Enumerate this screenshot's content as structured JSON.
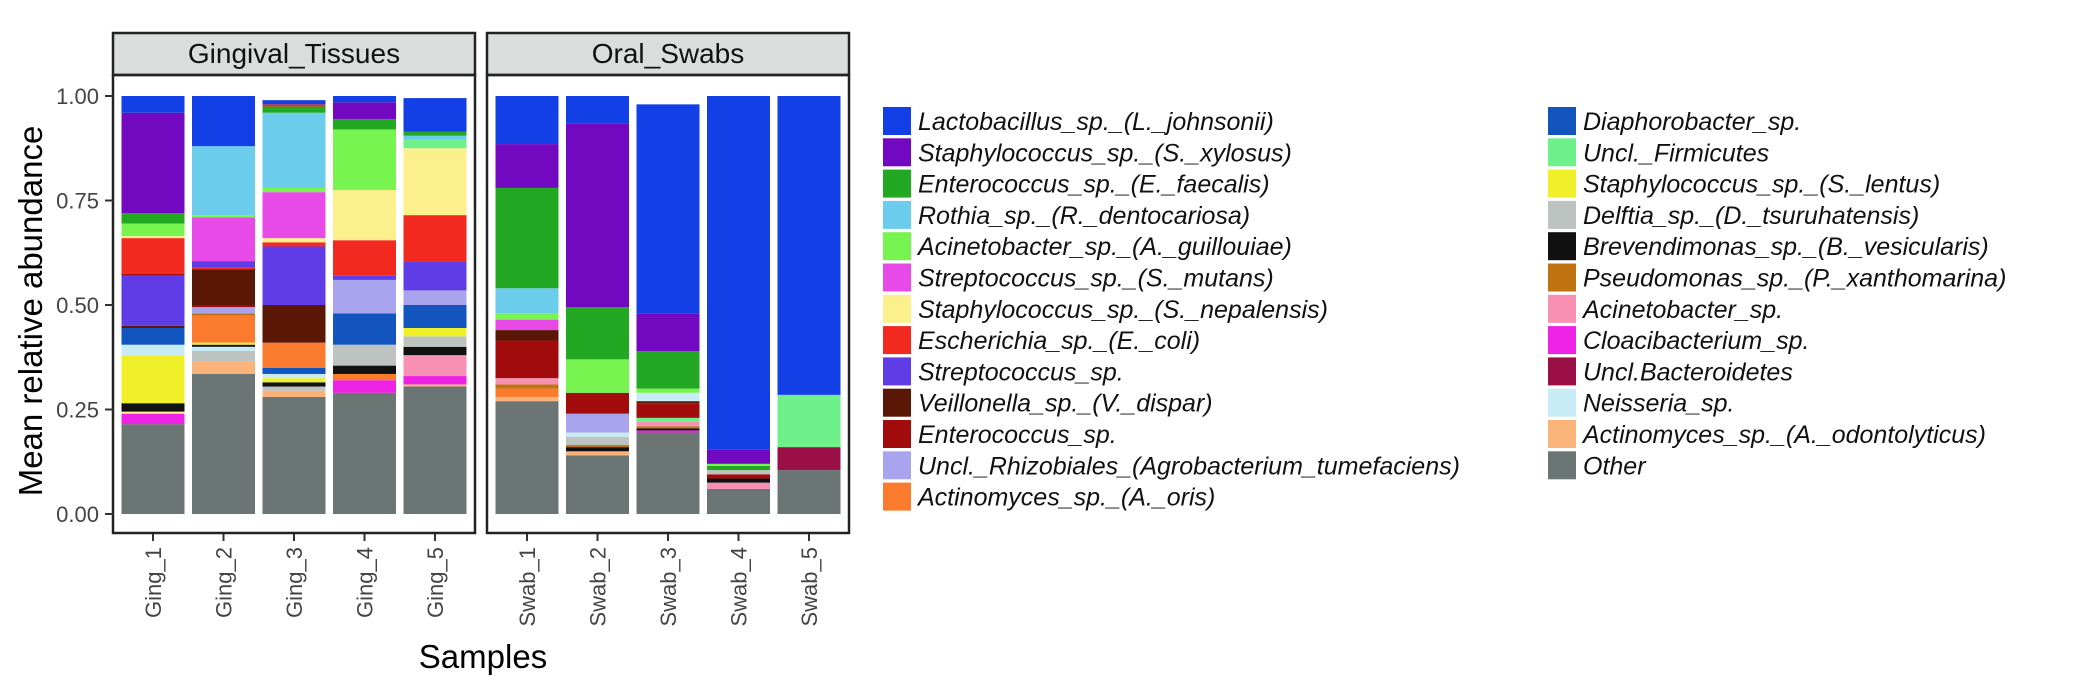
{
  "chart_data": {
    "type": "bar",
    "stacked": true,
    "ylabel": "Mean relative abundance",
    "xlabel": "Samples",
    "ylim": [
      0,
      1
    ],
    "yticks": [
      "0.00",
      "0.25",
      "0.50",
      "0.75",
      "1.00"
    ],
    "grid": false,
    "legend_position": "right",
    "legend_title": "",
    "taxa": [
      {
        "name": "Lactobacillus_sp._(L._johnsonii)",
        "color": "#1340E6"
      },
      {
        "name": "Staphylococcus_sp._(S._xylosus)",
        "color": "#7209C0"
      },
      {
        "name": "Enterococcus_sp._(E._faecalis)",
        "color": "#22A822"
      },
      {
        "name": "Rothia_sp._(R._dentocariosa)",
        "color": "#6CCCEC"
      },
      {
        "name": "Acinetobacter_sp._(A._guillouiae)",
        "color": "#78F450"
      },
      {
        "name": "Streptococcus_sp._(S._mutans)",
        "color": "#E84AE8"
      },
      {
        "name": "Staphylococcus_sp._(S._nepalensis)",
        "color": "#FBF08C"
      },
      {
        "name": "Escherichia_sp._(E._coli)",
        "color": "#F2291E"
      },
      {
        "name": "Streptococcus_sp.",
        "color": "#5F3CE6"
      },
      {
        "name": "Veillonella_sp._(V._dispar)",
        "color": "#5A1706"
      },
      {
        "name": "Enterococcus_sp.",
        "color": "#A30C0C"
      },
      {
        "name": "Uncl._Rhizobiales_(Agrobacterium_tumefaciens)",
        "color": "#A8A4EE"
      },
      {
        "name": "Actinomyces_sp._(A._oris)",
        "color": "#FA7B2E"
      },
      {
        "name": "Diaphorobacter_sp.",
        "color": "#1255BE"
      },
      {
        "name": "Uncl._Firmicutes",
        "color": "#6EF08A"
      },
      {
        "name": "Staphylococcus_sp._(S._lentus)",
        "color": "#F0F02A"
      },
      {
        "name": "Delftia_sp._(D._tsuruhatensis)",
        "color": "#BDC3C0"
      },
      {
        "name": "Brevendimonas_sp._(B._vesicularis)",
        "color": "#111111"
      },
      {
        "name": "Pseudomonas_sp._(P._xanthomarina)",
        "color": "#C07310"
      },
      {
        "name": "Acinetobacter_sp.",
        "color": "#F890B4"
      },
      {
        "name": "Cloacibacterium_sp.",
        "color": "#EE22E4"
      },
      {
        "name": "Uncl.Bacteroidetes",
        "color": "#9A1046"
      },
      {
        "name": "Neisseria_sp.",
        "color": "#C8ECF6"
      },
      {
        "name": "Actinomyces_sp._(A._odontolyticus)",
        "color": "#FAB47A"
      },
      {
        "name": "Other",
        "color": "#6B7574"
      }
    ],
    "facets": [
      {
        "title": "Gingival_Tissues",
        "samples": [
          {
            "name": "Ging_1",
            "stack": [
              [
                "Other",
                0.215
              ],
              [
                "Cloacibacterium_sp.",
                0.025
              ],
              [
                "Staphylococcus_sp._(S._nepalensis)",
                0.005
              ],
              [
                "Brevendimonas_sp._(B._vesicularis)",
                0.02
              ],
              [
                "Staphylococcus_sp._(S._lentus)",
                0.115
              ],
              [
                "Neisseria_sp.",
                0.025
              ],
              [
                "Diaphorobacter_sp.",
                0.04
              ],
              [
                "Veillonella_sp._(V._dispar)",
                0.005
              ],
              [
                "Streptococcus_sp.",
                0.12
              ],
              [
                "Enterococcus_sp.",
                0.005
              ],
              [
                "Escherichia_sp._(E._coli)",
                0.085
              ],
              [
                "Staphylococcus_sp._(S._nepalensis)",
                0.005
              ],
              [
                "Acinetobacter_sp._(A._guillouiae)",
                0.03
              ],
              [
                "Enterococcus_sp._(E._faecalis)",
                0.025
              ],
              [
                "Staphylococcus_sp._(S._xylosus)",
                0.24
              ],
              [
                "Lactobacillus_sp._(L._johnsonii)",
                0.04
              ]
            ]
          },
          {
            "name": "Ging_2",
            "stack": [
              [
                "Other",
                0.335
              ],
              [
                "Actinomyces_sp._(A._odontolyticus)",
                0.03
              ],
              [
                "Delftia_sp._(D._tsuruhatensis)",
                0.025
              ],
              [
                "Neisseria_sp.",
                0.01
              ],
              [
                "Brevendimonas_sp._(B._vesicularis)",
                0.005
              ],
              [
                "Staphylococcus_sp._(S._lentus)",
                0.005
              ],
              [
                "Actinomyces_sp._(A._oris)",
                0.065
              ],
              [
                "Pseudomonas_sp._(P._xanthomarina)",
                0.005
              ],
              [
                "Uncl._Rhizobiales_(Agrobacterium_tumefaciens)",
                0.015
              ],
              [
                "Enterococcus_sp.",
                0.005
              ],
              [
                "Veillonella_sp._(V._dispar)",
                0.085
              ],
              [
                "Escherichia_sp._(E._coli)",
                0.005
              ],
              [
                "Streptococcus_sp.",
                0.015
              ],
              [
                "Streptococcus_sp._(S._mutans)",
                0.105
              ],
              [
                "Acinetobacter_sp._(A._guillouiae)",
                0.005
              ],
              [
                "Rothia_sp._(R._dentocariosa)",
                0.165
              ],
              [
                "Lactobacillus_sp._(L._johnsonii)",
                0.12
              ]
            ]
          },
          {
            "name": "Ging_3",
            "stack": [
              [
                "Other",
                0.28
              ],
              [
                "Actinomyces_sp._(A._odontolyticus)",
                0.015
              ],
              [
                "Delftia_sp._(D._tsuruhatensis)",
                0.01
              ],
              [
                "Brevendimonas_sp._(B._vesicularis)",
                0.01
              ],
              [
                "Staphylococcus_sp._(S._lentus)",
                0.01
              ],
              [
                "Neisseria_sp.",
                0.01
              ],
              [
                "Diaphorobacter_sp.",
                0.015
              ],
              [
                "Actinomyces_sp._(A._oris)",
                0.06
              ],
              [
                "Veillonella_sp._(V._dispar)",
                0.09
              ],
              [
                "Streptococcus_sp.",
                0.14
              ],
              [
                "Escherichia_sp._(E._coli)",
                0.01
              ],
              [
                "Staphylococcus_sp._(S._nepalensis)",
                0.01
              ],
              [
                "Streptococcus_sp._(S._mutans)",
                0.11
              ],
              [
                "Acinetobacter_sp._(A._guillouiae)",
                0.01
              ],
              [
                "Rothia_sp._(R._dentocariosa)",
                0.18
              ],
              [
                "Enterococcus_sp._(E._faecalis)",
                0.015
              ],
              [
                "Escherichia_sp._(E._coli)",
                0.005
              ],
              [
                "Lactobacillus_sp._(L._johnsonii)",
                0.01
              ]
            ]
          },
          {
            "name": "Ging_4",
            "stack": [
              [
                "Other",
                0.29
              ],
              [
                "Cloacibacterium_sp.",
                0.03
              ],
              [
                "Actinomyces_sp._(A._oris)",
                0.015
              ],
              [
                "Brevendimonas_sp._(B._vesicularis)",
                0.02
              ],
              [
                "Delftia_sp._(D._tsuruhatensis)",
                0.05
              ],
              [
                "Diaphorobacter_sp.",
                0.075
              ],
              [
                "Uncl._Rhizobiales_(Agrobacterium_tumefaciens)",
                0.08
              ],
              [
                "Streptococcus_sp.",
                0.01
              ],
              [
                "Escherichia_sp._(E._coli)",
                0.085
              ],
              [
                "Staphylococcus_sp._(S._nepalensis)",
                0.12
              ],
              [
                "Acinetobacter_sp._(A._guillouiae)",
                0.145
              ],
              [
                "Enterococcus_sp._(E._faecalis)",
                0.025
              ],
              [
                "Staphylococcus_sp._(S._xylosus)",
                0.04
              ],
              [
                "Lactobacillus_sp._(L._johnsonii)",
                0.015
              ]
            ]
          },
          {
            "name": "Ging_5",
            "stack": [
              [
                "Other",
                0.305
              ],
              [
                "Actinomyces_sp._(A._odontolyticus)",
                0.005
              ],
              [
                "Cloacibacterium_sp.",
                0.02
              ],
              [
                "Acinetobacter_sp.",
                0.05
              ],
              [
                "Brevendimonas_sp._(B._vesicularis)",
                0.02
              ],
              [
                "Delftia_sp._(D._tsuruhatensis)",
                0.025
              ],
              [
                "Staphylococcus_sp._(S._lentus)",
                0.02
              ],
              [
                "Diaphorobacter_sp.",
                0.055
              ],
              [
                "Uncl._Rhizobiales_(Agrobacterium_tumefaciens)",
                0.035
              ],
              [
                "Streptococcus_sp.",
                0.07
              ],
              [
                "Escherichia_sp._(E._coli)",
                0.11
              ],
              [
                "Staphylococcus_sp._(S._nepalensis)",
                0.16
              ],
              [
                "Uncl._Firmicutes",
                0.02
              ],
              [
                "Rothia_sp._(R._dentocariosa)",
                0.01
              ],
              [
                "Enterococcus_sp._(E._faecalis)",
                0.01
              ],
              [
                "Lactobacillus_sp._(L._johnsonii)",
                0.08
              ]
            ]
          }
        ]
      },
      {
        "title": "Oral_Swabs",
        "samples": [
          {
            "name": "Swab_1",
            "stack": [
              [
                "Other",
                0.27
              ],
              [
                "Actinomyces_sp._(A._odontolyticus)",
                0.01
              ],
              [
                "Actinomyces_sp._(A._oris)",
                0.02
              ],
              [
                "Pseudomonas_sp._(P._xanthomarina)",
                0.01
              ],
              [
                "Acinetobacter_sp.",
                0.015
              ],
              [
                "Enterococcus_sp.",
                0.09
              ],
              [
                "Veillonella_sp._(V._dispar)",
                0.025
              ],
              [
                "Streptococcus_sp._(S._mutans)",
                0.025
              ],
              [
                "Acinetobacter_sp._(A._guillouiae)",
                0.015
              ],
              [
                "Rothia_sp._(R._dentocariosa)",
                0.06
              ],
              [
                "Enterococcus_sp._(E._faecalis)",
                0.24
              ],
              [
                "Staphylococcus_sp._(S._xylosus)",
                0.105
              ],
              [
                "Lactobacillus_sp._(L._johnsonii)",
                0.115
              ]
            ]
          },
          {
            "name": "Swab_2",
            "stack": [
              [
                "Other",
                0.14
              ],
              [
                "Actinomyces_sp._(A._odontolyticus)",
                0.01
              ],
              [
                "Brevendimonas_sp._(B._vesicularis)",
                0.01
              ],
              [
                "Pseudomonas_sp._(P._xanthomarina)",
                0.005
              ],
              [
                "Delftia_sp._(D._tsuruhatensis)",
                0.02
              ],
              [
                "Neisseria_sp.",
                0.01
              ],
              [
                "Uncl._Rhizobiales_(Agrobacterium_tumefaciens)",
                0.045
              ],
              [
                "Enterococcus_sp.",
                0.05
              ],
              [
                "Acinetobacter_sp._(A._guillouiae)",
                0.08
              ],
              [
                "Enterococcus_sp._(E._faecalis)",
                0.125
              ],
              [
                "Staphylococcus_sp._(S._xylosus)",
                0.44
              ],
              [
                "Lactobacillus_sp._(L._johnsonii)",
                0.065
              ]
            ]
          },
          {
            "name": "Swab_3",
            "stack": [
              [
                "Other",
                0.195
              ],
              [
                "Cloacibacterium_sp.",
                0.005
              ],
              [
                "Brevendimonas_sp._(B._vesicularis)",
                0.005
              ],
              [
                "Pseudomonas_sp._(P._xanthomarina)",
                0.005
              ],
              [
                "Acinetobacter_sp.",
                0.01
              ],
              [
                "Uncl._Firmicutes",
                0.01
              ],
              [
                "Enterococcus_sp.",
                0.035
              ],
              [
                "Veillonella_sp._(V._dispar)",
                0.005
              ],
              [
                "Neisseria_sp.",
                0.02
              ],
              [
                "Acinetobacter_sp._(A._guillouiae)",
                0.01
              ],
              [
                "Enterococcus_sp._(E._faecalis)",
                0.09
              ],
              [
                "Staphylococcus_sp._(S._xylosus)",
                0.09
              ],
              [
                "Lactobacillus_sp._(L._johnsonii)",
                0.5
              ]
            ]
          },
          {
            "name": "Swab_4",
            "stack": [
              [
                "Other",
                0.06
              ],
              [
                "Acinetobacter_sp.",
                0.015
              ],
              [
                "Brevendimonas_sp._(B._vesicularis)",
                0.01
              ],
              [
                "Enterococcus_sp.",
                0.01
              ],
              [
                "Delftia_sp._(D._tsuruhatensis)",
                0.01
              ],
              [
                "Enterococcus_sp._(E._faecalis)",
                0.01
              ],
              [
                "Acinetobacter_sp._(A._guillouiae)",
                0.005
              ],
              [
                "Staphylococcus_sp._(S._xylosus)",
                0.035
              ],
              [
                "Lactobacillus_sp._(L._johnsonii)",
                0.845
              ]
            ]
          },
          {
            "name": "Swab_5",
            "stack": [
              [
                "Other",
                0.105
              ],
              [
                "Uncl.Bacteroidetes",
                0.055
              ],
              [
                "Uncl._Firmicutes",
                0.125
              ],
              [
                "Lactobacillus_sp._(L._johnsonii)",
                0.715
              ]
            ]
          }
        ]
      }
    ]
  }
}
